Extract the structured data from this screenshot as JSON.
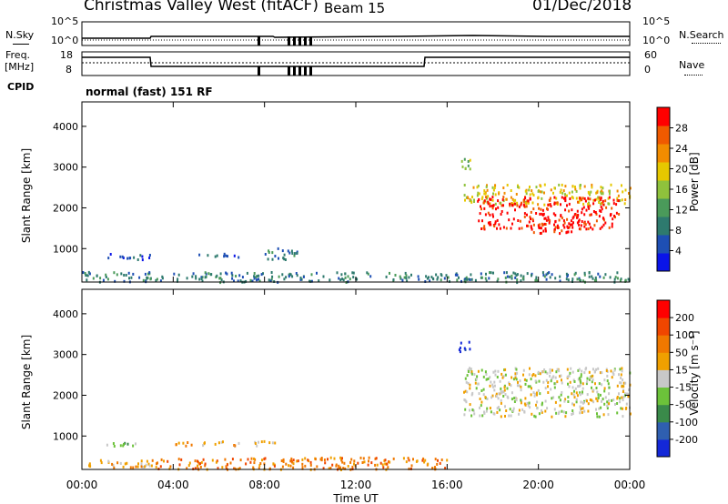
{
  "header": {
    "title": "Christmas Valley West (fitACF)",
    "beam": "Beam 15",
    "date": "01/Dec/2018"
  },
  "top_panel": {
    "left_label": "N.Sky",
    "right_label": "N.Search",
    "left_ticks": [
      "10^5",
      "10^0"
    ],
    "right_ticks": [
      "10^5",
      "10^0"
    ]
  },
  "freq_panel": {
    "left_label_line1": "Freq.",
    "left_label_line2": "[MHz]",
    "left_ticks": [
      "18",
      "8"
    ],
    "right_label": "Nave",
    "right_ticks": [
      "60",
      "0"
    ]
  },
  "cpid": {
    "label": "CPID",
    "mode": "normal (fast) 151 RF"
  },
  "colors": {
    "power_scale": [
      "#0a14e8",
      "#1e4fb4",
      "#2e7a6e",
      "#4a9a5a",
      "#8fc23c",
      "#e6c800",
      "#f28c00",
      "#f05a00",
      "#ff0000"
    ],
    "velocity_scale": [
      "#1428d8",
      "#2f5fb0",
      "#3a8a4a",
      "#6cc23a",
      "#c8c8c8",
      "#f0a000",
      "#f07800",
      "#f04600",
      "#ff0000"
    ]
  },
  "chart_data": [
    {
      "type": "heatmap",
      "panel": "power",
      "ylabel": "Slant Range [km]",
      "yticks": [
        1000,
        2000,
        3000,
        4000
      ],
      "ylim": [
        180,
        4600
      ],
      "xlim": [
        0,
        24
      ],
      "colorbar": {
        "label": "Power [dB]",
        "ticks": [
          "28",
          "24",
          "20",
          "16",
          "12",
          "8",
          "4"
        ]
      },
      "regions": [
        {
          "t0": 0.0,
          "t1": 24.0,
          "r0": 200,
          "r1": 450,
          "level": 2
        },
        {
          "t0": 1.0,
          "t1": 3.0,
          "r0": 750,
          "r1": 900,
          "level": 1
        },
        {
          "t0": 5.0,
          "t1": 7.0,
          "r0": 800,
          "r1": 900,
          "level": 1
        },
        {
          "t0": 8.0,
          "t1": 9.5,
          "r0": 750,
          "r1": 1050,
          "level": 2
        },
        {
          "t0": 16.5,
          "t1": 17.0,
          "r0": 2950,
          "r1": 3300,
          "level": 4
        },
        {
          "t0": 16.7,
          "t1": 24.0,
          "r0": 2100,
          "r1": 2600,
          "level": 5
        },
        {
          "t0": 17.3,
          "t1": 23.5,
          "r0": 1500,
          "r1": 2300,
          "level": 8
        },
        {
          "t0": 19.5,
          "t1": 21.5,
          "r0": 1400,
          "r1": 1700,
          "level": 8
        }
      ]
    },
    {
      "type": "heatmap",
      "panel": "velocity",
      "ylabel": "Slant Range [km]",
      "xlabel": "Time UT",
      "xticks": [
        "00:00",
        "04:00",
        "08:00",
        "12:00",
        "16:00",
        "20:00",
        "00:00"
      ],
      "yticks": [
        1000,
        2000,
        3000,
        4000
      ],
      "ylim": [
        180,
        4600
      ],
      "xlim": [
        0,
        24
      ],
      "colorbar": {
        "label": "Velocity [m s⁻¹]",
        "ticks": [
          "200",
          "100",
          "50",
          "15",
          "-15",
          "-50",
          "-100",
          "-200"
        ]
      },
      "regions": [
        {
          "t0": 0.0,
          "t1": 3.0,
          "r0": 250,
          "r1": 450,
          "level": 5
        },
        {
          "t0": 3.0,
          "t1": 16.0,
          "r0": 200,
          "r1": 500,
          "level": 6
        },
        {
          "t0": 1.0,
          "t1": 3.0,
          "r0": 780,
          "r1": 880,
          "level": 3
        },
        {
          "t0": 4.0,
          "t1": 7.0,
          "r0": 780,
          "r1": 900,
          "level": 5
        },
        {
          "t0": 7.5,
          "t1": 8.5,
          "r0": 780,
          "r1": 950,
          "level": 4
        },
        {
          "t0": 16.5,
          "t1": 17.0,
          "r0": 3050,
          "r1": 3350,
          "level": 0
        },
        {
          "t0": 16.7,
          "t1": 24.0,
          "r0": 1500,
          "r1": 2700,
          "level": 4
        }
      ]
    }
  ]
}
